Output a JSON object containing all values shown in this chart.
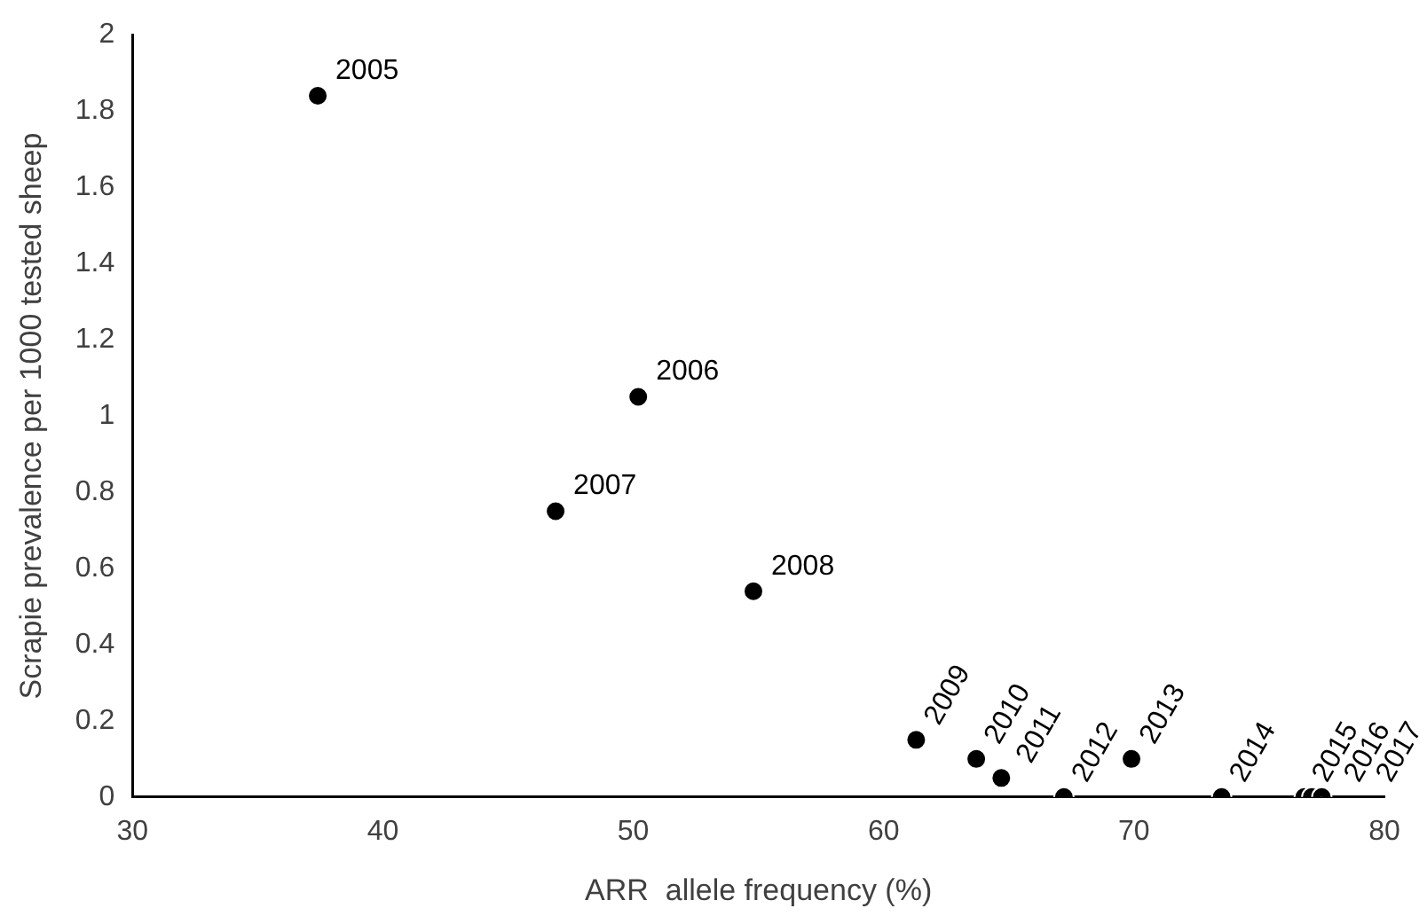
{
  "chart_data": {
    "type": "scatter",
    "xlabel": "ARR  allele frequency (%)",
    "ylabel": "Scrapie prevalence per 1000 tested sheep",
    "x": [
      37.4,
      50.2,
      46.9,
      54.8,
      61.3,
      63.7,
      64.7,
      67.2,
      69.9,
      73.5,
      76.8,
      77.1,
      77.5
    ],
    "series": [
      {
        "color": "#000000",
        "values": [
          1.84,
          1.05,
          0.75,
          0.54,
          0.15,
          0.1,
          0.05,
          0,
          0.1,
          0,
          0,
          0,
          0
        ]
      }
    ],
    "annotations": [
      {
        "text": "2005",
        "x": 37.4,
        "y": 1.84
      },
      {
        "text": "2006",
        "x": 50.2,
        "y": 1.05
      },
      {
        "text": "2007",
        "x": 46.9,
        "y": 0.75
      },
      {
        "text": "2008",
        "x": 54.8,
        "y": 0.54
      },
      {
        "text": "2009",
        "x": 61.3,
        "y": 0.15
      },
      {
        "text": "2010",
        "x": 63.7,
        "y": 0.1
      },
      {
        "text": "2011",
        "x": 64.7,
        "y": 0.05
      },
      {
        "text": "2012",
        "x": 67.2,
        "y": 0
      },
      {
        "text": "2013",
        "x": 69.9,
        "y": 0.1
      },
      {
        "text": "2014",
        "x": 73.5,
        "y": 0
      },
      {
        "text": "2015",
        "x": 76.8,
        "y": 0
      },
      {
        "text": "2016",
        "x": 77.1,
        "y": 0
      },
      {
        "text": "2017",
        "x": 77.5,
        "y": 0
      }
    ],
    "xlim": [
      30,
      80
    ],
    "xticks": [
      30,
      40,
      50,
      60,
      70,
      80
    ],
    "ylim": [
      0,
      2
    ],
    "yticks": [
      0,
      0.2,
      0.4,
      0.6,
      0.8,
      1,
      1.2,
      1.4,
      1.6,
      1.8,
      2
    ],
    "grid": false,
    "legend": false,
    "marker": "circle"
  }
}
